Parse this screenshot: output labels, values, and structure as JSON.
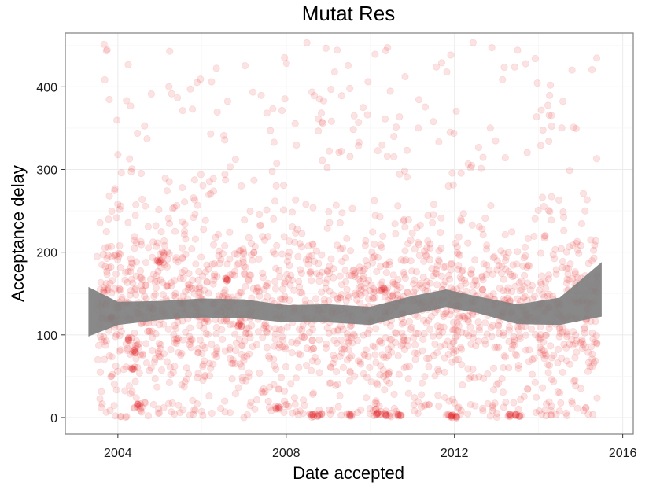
{
  "chart_data": {
    "type": "scatter",
    "title": "Mutat Res",
    "xlabel": "Date accepted",
    "ylabel": "Acceptance delay",
    "x_ticks": [
      "2004",
      "2008",
      "2012",
      "2016"
    ],
    "y_ticks": [
      "0",
      "100",
      "200",
      "300",
      "400"
    ],
    "xlim": [
      2002.75,
      2016.25
    ],
    "ylim": [
      -20,
      465
    ],
    "grid": true,
    "point_color": "#e31a1c",
    "point_alpha": 0.12,
    "band_color": "#7f7f7f",
    "cluster_points": [
      {
        "x": 2004.3,
        "y": 95
      },
      {
        "x": 2004.4,
        "y": 80
      },
      {
        "x": 2004.35,
        "y": 60
      },
      {
        "x": 2004.5,
        "y": 15
      },
      {
        "x": 2006.6,
        "y": 167
      },
      {
        "x": 2006.9,
        "y": 112
      },
      {
        "x": 2007.8,
        "y": 12
      },
      {
        "x": 2008.6,
        "y": 3
      },
      {
        "x": 2008.8,
        "y": 3
      },
      {
        "x": 2009.5,
        "y": 3
      },
      {
        "x": 2010.2,
        "y": 5
      },
      {
        "x": 2010.4,
        "y": 4
      },
      {
        "x": 2010.7,
        "y": 2
      },
      {
        "x": 2011.9,
        "y": 2
      },
      {
        "x": 2012.0,
        "y": 1
      },
      {
        "x": 2013.3,
        "y": 3
      },
      {
        "x": 2013.5,
        "y": 3
      },
      {
        "x": 2010.3,
        "y": 155
      },
      {
        "x": 2005.0,
        "y": 190
      },
      {
        "x": 2003.8,
        "y": 120
      }
    ],
    "cloud": {
      "count": 2100,
      "x_range": [
        2003.5,
        2015.4
      ],
      "seed": 7
    },
    "smooth_band": [
      {
        "x": 2003.3,
        "lo": 98,
        "hi": 158
      },
      {
        "x": 2004.0,
        "lo": 112,
        "hi": 140
      },
      {
        "x": 2005.0,
        "lo": 118,
        "hi": 141
      },
      {
        "x": 2006.0,
        "lo": 121,
        "hi": 144
      },
      {
        "x": 2007.0,
        "lo": 120,
        "hi": 143
      },
      {
        "x": 2008.0,
        "lo": 115,
        "hi": 136
      },
      {
        "x": 2009.0,
        "lo": 115,
        "hi": 137
      },
      {
        "x": 2010.0,
        "lo": 112,
        "hi": 134
      },
      {
        "x": 2011.0,
        "lo": 125,
        "hi": 147
      },
      {
        "x": 2011.8,
        "lo": 133,
        "hi": 155
      },
      {
        "x": 2012.5,
        "lo": 127,
        "hi": 147
      },
      {
        "x": 2013.5,
        "lo": 113,
        "hi": 137
      },
      {
        "x": 2014.5,
        "lo": 112,
        "hi": 145
      },
      {
        "x": 2015.5,
        "lo": 122,
        "hi": 188
      }
    ]
  }
}
